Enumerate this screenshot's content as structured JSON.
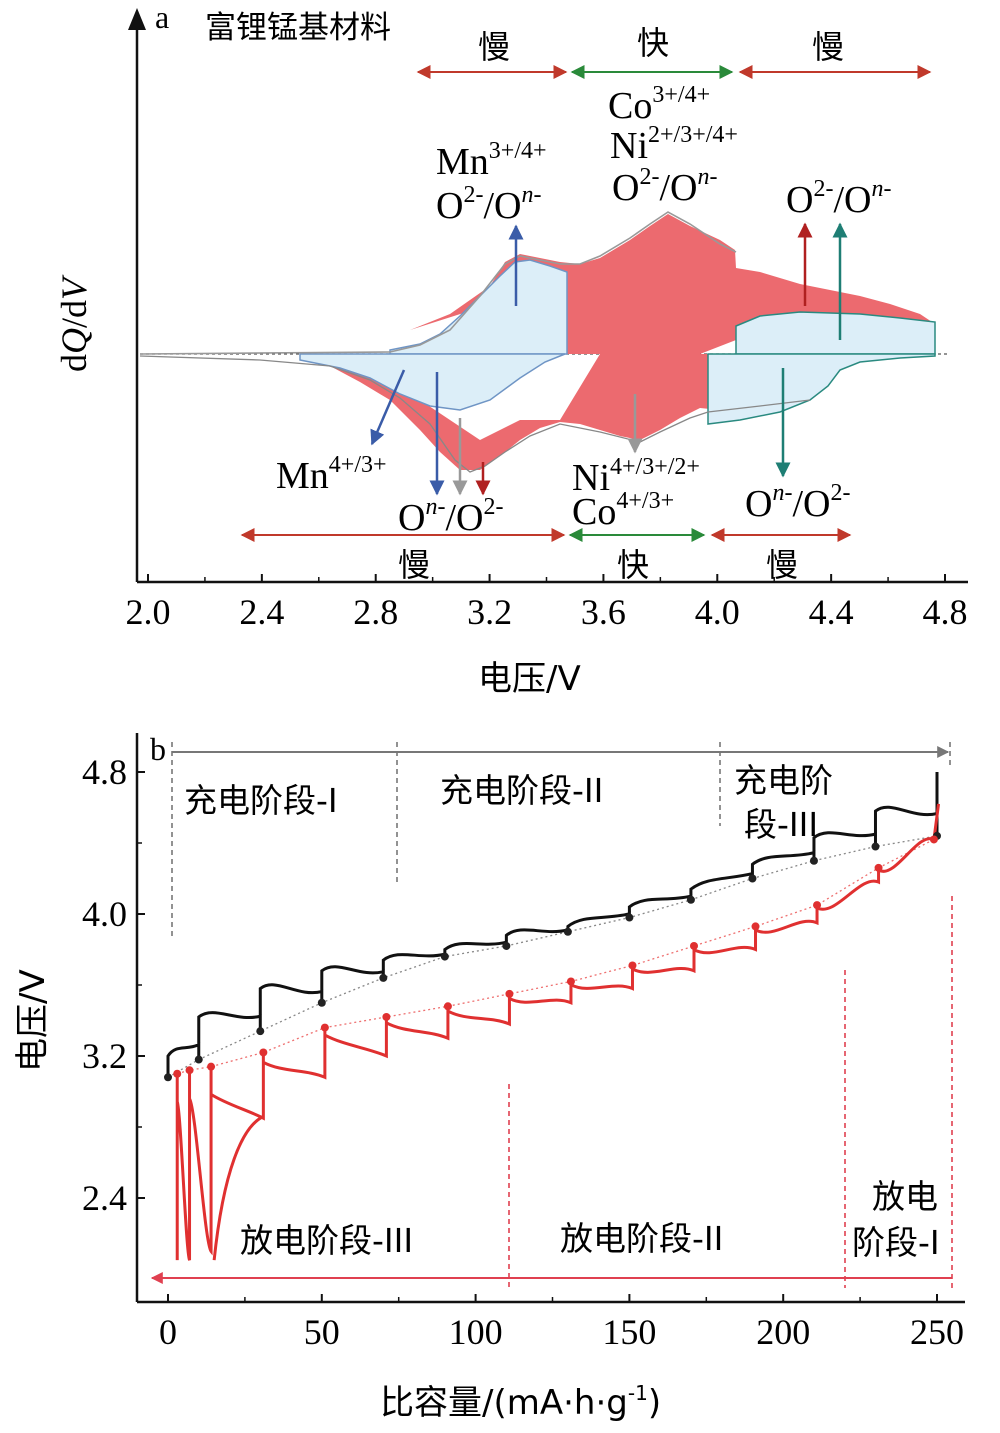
{
  "chart_data": [
    {
      "panel": "a",
      "type": "line",
      "title": "富锂锰基材料",
      "xlabel": "电压/V",
      "ylabel": "dQ/dV",
      "xlim": [
        2.0,
        4.8
      ],
      "xticks": [
        "2.0",
        "2.4",
        "2.8",
        "3.2",
        "3.6",
        "4.0",
        "4.4",
        "4.8"
      ],
      "series": [
        {
          "name": "",
          "color": "#e8505b",
          "charge": [
            [
              2.0,
              0
            ],
            [
              2.9,
              0.01
            ],
            [
              3.1,
              0.06
            ],
            [
              3.2,
              0.15
            ],
            [
              3.3,
              0.34
            ],
            [
              3.35,
              0.44
            ],
            [
              3.5,
              0.47
            ],
            [
              3.6,
              0.48
            ],
            [
              3.7,
              0.54
            ],
            [
              3.8,
              0.62
            ],
            [
              3.9,
              0.56
            ],
            [
              4.0,
              0.42
            ],
            [
              4.1,
              0.41
            ],
            [
              4.2,
              0.36
            ],
            [
              4.4,
              0.31
            ],
            [
              4.6,
              0.2
            ],
            [
              4.8,
              0.13
            ]
          ],
          "discharge": [
            [
              2.0,
              0
            ],
            [
              2.6,
              -0.06
            ],
            [
              2.8,
              -0.22
            ],
            [
              3.0,
              -0.56
            ],
            [
              3.1,
              -0.55
            ],
            [
              3.2,
              -0.48
            ],
            [
              3.3,
              -0.42
            ],
            [
              3.4,
              -0.36
            ],
            [
              3.5,
              -0.38
            ],
            [
              3.6,
              -0.4
            ],
            [
              3.7,
              -0.44
            ],
            [
              3.8,
              -0.38
            ],
            [
              3.9,
              -0.33
            ],
            [
              4.0,
              -0.24
            ],
            [
              4.2,
              -0.21
            ],
            [
              4.4,
              -0.16
            ],
            [
              4.8,
              0
            ]
          ]
        },
        {
          "name": "",
          "color": "#8fb8dd",
          "charge": [
            [
              2.0,
              0
            ],
            [
              2.9,
              0.01
            ],
            [
              3.05,
              0.06
            ],
            [
              3.2,
              0.15
            ],
            [
              3.3,
              0.34
            ],
            [
              3.35,
              0.41
            ],
            [
              3.5,
              0.42
            ],
            [
              3.5,
              0.0
            ],
            [
              4.1,
              0.0
            ],
            [
              4.1,
              0.15
            ],
            [
              4.3,
              0.19
            ],
            [
              4.8,
              0.17
            ]
          ],
          "discharge": [
            [
              2.0,
              0
            ],
            [
              2.6,
              -0.06
            ],
            [
              2.8,
              -0.2
            ],
            [
              3.0,
              -0.32
            ],
            [
              3.2,
              -0.3
            ],
            [
              3.4,
              -0.2
            ],
            [
              3.5,
              -0.05
            ],
            [
              4.0,
              0.0
            ],
            [
              4.0,
              -0.3
            ],
            [
              4.2,
              -0.27
            ],
            [
              4.4,
              -0.16
            ],
            [
              4.6,
              -0.06
            ],
            [
              4.8,
              0
            ]
          ]
        }
      ],
      "annotations": {
        "top_regions": [
          "慢",
          "快",
          "慢"
        ],
        "bottom_regions": [
          "慢",
          "快",
          "慢"
        ],
        "mn_charge": "Mn3+/4+ O2-/On-",
        "co_ni_charge": "Co3+/4+ Ni2+/3+/4+ O2-/On-",
        "o_charge_high": "O2-/On-",
        "mn_discharge": "Mn4+/3+",
        "o_discharge": "On-/O2-",
        "ni_co_discharge": "Ni4+/3+/2+ Co4+/3+",
        "o_discharge_high": "On-/O2-"
      }
    },
    {
      "panel": "b",
      "type": "line",
      "xlabel": "比容量/(mA·h·g-1)",
      "ylabel": "电压/V",
      "xlim": [
        0,
        255
      ],
      "ylim": [
        1.9,
        5.0
      ],
      "xticks": [
        "0",
        "50",
        "100",
        "150",
        "200",
        "250"
      ],
      "yticks": [
        "2.4",
        "3.2",
        "4.0",
        "4.8"
      ],
      "series": [
        {
          "name": "",
          "color": "#111111",
          "relaxed_points": [
            [
              0,
              3.08
            ],
            [
              10,
              3.18
            ],
            [
              30,
              3.34
            ],
            [
              50,
              3.5
            ],
            [
              70,
              3.64
            ],
            [
              90,
              3.76
            ],
            [
              110,
              3.82
            ],
            [
              130,
              3.9
            ],
            [
              150,
              3.98
            ],
            [
              170,
              4.08
            ],
            [
              190,
              4.2
            ],
            [
              210,
              4.3
            ],
            [
              230,
              4.38
            ],
            [
              250,
              4.44
            ]
          ],
          "peak_points": [
            [
              0,
              3.2
            ],
            [
              10,
              3.42
            ],
            [
              30,
              3.58
            ],
            [
              50,
              3.68
            ],
            [
              70,
              3.74
            ],
            [
              90,
              3.8
            ],
            [
              110,
              3.88
            ],
            [
              130,
              3.93
            ],
            [
              150,
              4.04
            ],
            [
              170,
              4.14
            ],
            [
              190,
              4.28
            ],
            [
              210,
              4.43
            ],
            [
              230,
              4.58
            ],
            [
              250,
              4.8
            ]
          ]
        },
        {
          "name": "",
          "color": "#e03030",
          "relaxed_points": [
            [
              3,
              3.1
            ],
            [
              7,
              3.12
            ],
            [
              14,
              3.14
            ],
            [
              31,
              3.22
            ],
            [
              51,
              3.36
            ],
            [
              71,
              3.42
            ],
            [
              91,
              3.48
            ],
            [
              111,
              3.55
            ],
            [
              131,
              3.62
            ],
            [
              151,
              3.71
            ],
            [
              171,
              3.82
            ],
            [
              191,
              3.93
            ],
            [
              211,
              4.05
            ],
            [
              231,
              4.26
            ],
            [
              249,
              4.42
            ]
          ],
          "dip_points": [
            [
              3,
              2.05
            ],
            [
              7,
              2.05
            ],
            [
              14,
              2.1
            ],
            [
              31,
              2.85
            ],
            [
              51,
              3.08
            ],
            [
              71,
              3.2
            ],
            [
              91,
              3.3
            ],
            [
              111,
              3.38
            ],
            [
              131,
              3.5
            ],
            [
              151,
              3.58
            ],
            [
              171,
              3.68
            ],
            [
              191,
              3.8
            ],
            [
              211,
              3.95
            ],
            [
              231,
              4.18
            ],
            [
              249,
              4.42
            ]
          ]
        }
      ],
      "annotations": {
        "charge_stages": [
          "充电阶段-I",
          "充电阶段-II",
          "充电阶段-III"
        ],
        "discharge_stages": [
          "放电阶段-III",
          "放电阶段-II",
          "放电阶段-I"
        ]
      }
    }
  ],
  "panel_labels": {
    "a": "a",
    "b": "b"
  },
  "panel_a": {
    "title": "富锂锰基材料",
    "slow": "慢",
    "fast": "快",
    "mn": "Mn",
    "mn_sup": "3+/4+",
    "o": "O",
    "o_sup": "2-",
    "slash": "/",
    "on_n": "n-",
    "co": "Co",
    "co_sup": "3+/4+",
    "ni": "Ni",
    "ni_sup": "2+/3+/4+",
    "mn_d_sup": "4+/3+",
    "ni_d_sup": "4+/3+/2+",
    "co_d_sup": "4+/3+",
    "ylabel_d": "d",
    "ylabel_Q": "Q",
    "ylabel_mid": "/d",
    "ylabel_V": "V",
    "xlabel": "电压/V"
  },
  "panel_b": {
    "ylabel": "电压/V",
    "xlabel_main": "比容量/(mA·h·g",
    "xlabel_sup": "-1",
    "xlabel_end": ")",
    "charge_1": "充电阶段-I",
    "charge_2": "充电阶段-II",
    "charge_3a": "充电阶",
    "charge_3b": "段-III",
    "discharge_3": "放电阶段-III",
    "discharge_2": "放电阶段-II",
    "discharge_1a": "放电",
    "discharge_1b": "阶段-I"
  },
  "colors": {
    "red": "#e03030",
    "red_fill": "#ec6a6f",
    "blue_fill": "#dceef8",
    "blue_line": "#7aa0c8",
    "blue_arrow": "#3a5ca8",
    "teal": "#1e7e74",
    "green": "#2a8a3a",
    "gray": "#999999",
    "black": "#111111"
  }
}
